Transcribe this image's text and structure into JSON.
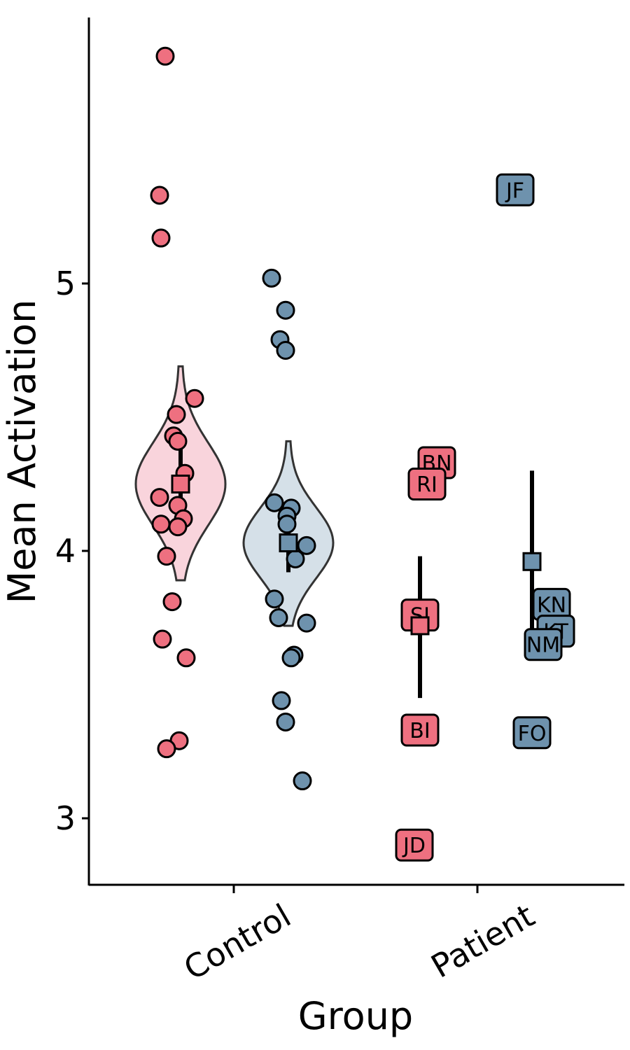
{
  "chart_data": {
    "type": "scatter",
    "xlabel": "Group",
    "ylabel": "Mean Activation",
    "ylim": [
      2.75,
      6.0
    ],
    "y_ticks": [
      3,
      4,
      5
    ],
    "y_tick_labels": [
      "3",
      "4",
      "5"
    ],
    "categories": [
      "Control",
      "Patient"
    ],
    "grid": false,
    "legend": "none",
    "colors": {
      "red": "#ee7080",
      "blue": "#6e92ad",
      "red_light": "#f9d4dc",
      "blue_light": "#d5e0e8"
    },
    "series": [
      {
        "group": "Control",
        "color_key": "red",
        "violin": true,
        "mean": 4.25,
        "ci": [
          4.1,
          4.4
        ],
        "violin_range": [
          3.89,
          4.69
        ],
        "points": [
          5.85,
          5.33,
          5.17,
          4.57,
          4.51,
          4.43,
          4.41,
          4.29,
          4.2,
          4.17,
          4.12,
          4.1,
          4.09,
          3.98,
          3.81,
          3.67,
          3.6,
          3.29,
          3.26
        ]
      },
      {
        "group": "Control",
        "color_key": "blue",
        "violin": true,
        "mean": 4.03,
        "ci": [
          3.92,
          4.13
        ],
        "violin_range": [
          3.72,
          4.41
        ],
        "points": [
          5.02,
          4.9,
          4.79,
          4.75,
          4.18,
          4.16,
          4.13,
          4.1,
          4.02,
          3.97,
          3.82,
          3.75,
          3.73,
          3.61,
          3.6,
          3.44,
          3.36,
          3.14
        ]
      },
      {
        "group": "Patient",
        "color_key": "red",
        "violin": false,
        "mean": 3.72,
        "ci": [
          3.45,
          3.98
        ],
        "points": [
          {
            "label": "BN",
            "value": 4.33
          },
          {
            "label": "RI",
            "value": 4.25
          },
          {
            "label": "SI",
            "value": 3.76
          },
          {
            "label": "BI",
            "value": 3.33
          },
          {
            "label": "JD",
            "value": 2.9
          }
        ]
      },
      {
        "group": "Patient",
        "color_key": "blue",
        "violin": false,
        "mean": 3.96,
        "ci": [
          3.65,
          4.3
        ],
        "points": [
          {
            "label": "JF",
            "value": 5.35
          },
          {
            "label": "KN",
            "value": 3.8
          },
          {
            "label": "KT",
            "value": 3.7
          },
          {
            "label": "NM",
            "value": 3.65
          },
          {
            "label": "FO",
            "value": 3.32
          }
        ]
      }
    ]
  }
}
